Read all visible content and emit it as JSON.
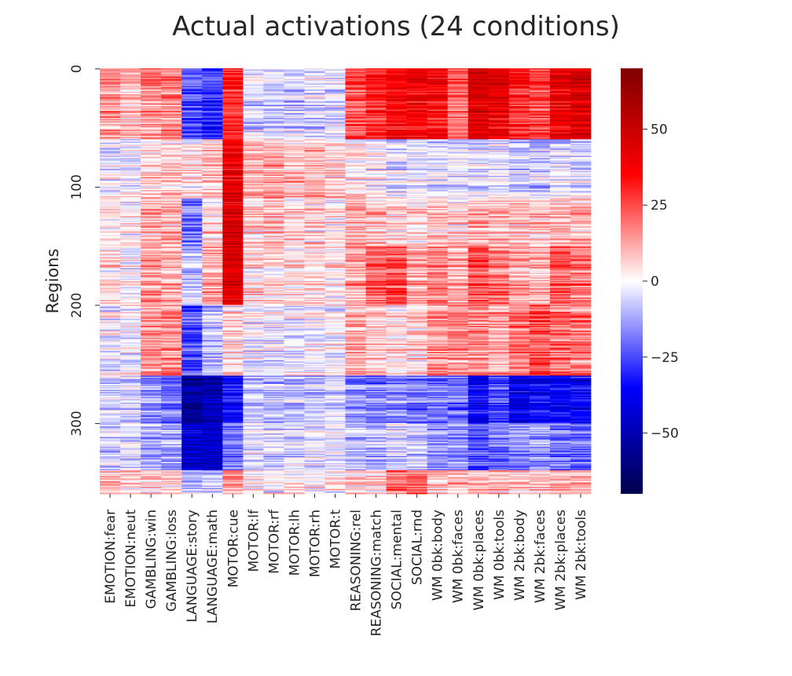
{
  "chart_data": {
    "type": "heatmap",
    "title": "Actual activations (24 conditions)",
    "ylabel": "Regions",
    "xlabel": "",
    "n_regions": 360,
    "categories": [
      "EMOTION:fear",
      "EMOTION:neut",
      "GAMBLING:win",
      "GAMBLING:loss",
      "LANGUAGE:story",
      "LANGUAGE:math",
      "MOTOR:cue",
      "MOTOR:lf",
      "MOTOR:rf",
      "MOTOR:lh",
      "MOTOR:rh",
      "MOTOR:t",
      "REASONING:rel",
      "REASONING:match",
      "SOCIAL:mental",
      "SOCIAL:rnd",
      "WM 0bk:body",
      "WM 0bk:faces",
      "WM 0bk:places",
      "WM 0bk:tools",
      "WM 2bk:body",
      "WM 2bk:faces",
      "WM 2bk:places",
      "WM 2bk:tools"
    ],
    "y_ticks": [
      0,
      100,
      200,
      300
    ],
    "colorbar": {
      "cmap": "seismic",
      "vmin": -70,
      "vmax": 70,
      "ticks": [
        50,
        25,
        0,
        -25,
        -50
      ],
      "tick_labels": [
        "50",
        "25",
        "0",
        "−25",
        "−50"
      ]
    },
    "region_bands": [
      {
        "start": 0,
        "end": 60,
        "values": [
          14,
          10,
          16,
          16,
          -25,
          -30,
          28,
          -5,
          -6,
          -7,
          -5,
          -6,
          25,
          30,
          35,
          38,
          35,
          20,
          45,
          40,
          30,
          25,
          40,
          45
        ]
      },
      {
        "start": 60,
        "end": 110,
        "values": [
          -3,
          -3,
          5,
          5,
          2,
          8,
          40,
          10,
          12,
          8,
          10,
          5,
          2,
          0,
          -5,
          -4,
          -5,
          -3,
          -5,
          -4,
          -8,
          -8,
          -5,
          -6
        ]
      },
      {
        "start": 110,
        "end": 150,
        "values": [
          2,
          0,
          10,
          10,
          -20,
          5,
          45,
          5,
          8,
          5,
          5,
          3,
          10,
          8,
          3,
          3,
          8,
          5,
          10,
          8,
          8,
          8,
          10,
          10
        ]
      },
      {
        "start": 150,
        "end": 200,
        "values": [
          5,
          0,
          15,
          10,
          -8,
          12,
          45,
          5,
          5,
          4,
          4,
          3,
          12,
          22,
          25,
          12,
          18,
          12,
          25,
          18,
          12,
          10,
          22,
          20
        ]
      },
      {
        "start": 200,
        "end": 260,
        "values": [
          -2,
          -3,
          15,
          15,
          -25,
          -10,
          5,
          -2,
          -3,
          -2,
          -2,
          -1,
          12,
          8,
          5,
          5,
          15,
          15,
          15,
          12,
          20,
          25,
          20,
          18
        ]
      },
      {
        "start": 260,
        "end": 300,
        "values": [
          -5,
          -5,
          -15,
          -20,
          -55,
          -50,
          -35,
          -8,
          -8,
          -8,
          -8,
          -5,
          -15,
          -18,
          -15,
          -18,
          -18,
          -20,
          -35,
          -25,
          -40,
          -35,
          -35,
          -35
        ]
      },
      {
        "start": 300,
        "end": 340,
        "values": [
          -8,
          -5,
          -12,
          -12,
          -45,
          -45,
          -20,
          -5,
          -5,
          -5,
          -5,
          -5,
          -10,
          -12,
          -5,
          -8,
          -15,
          -15,
          -25,
          -20,
          -15,
          -15,
          -20,
          -22
        ]
      },
      {
        "start": 340,
        "end": 360,
        "values": [
          10,
          5,
          5,
          5,
          -10,
          -10,
          15,
          0,
          0,
          0,
          0,
          0,
          5,
          5,
          20,
          20,
          8,
          8,
          10,
          8,
          8,
          8,
          10,
          10
        ]
      }
    ]
  }
}
